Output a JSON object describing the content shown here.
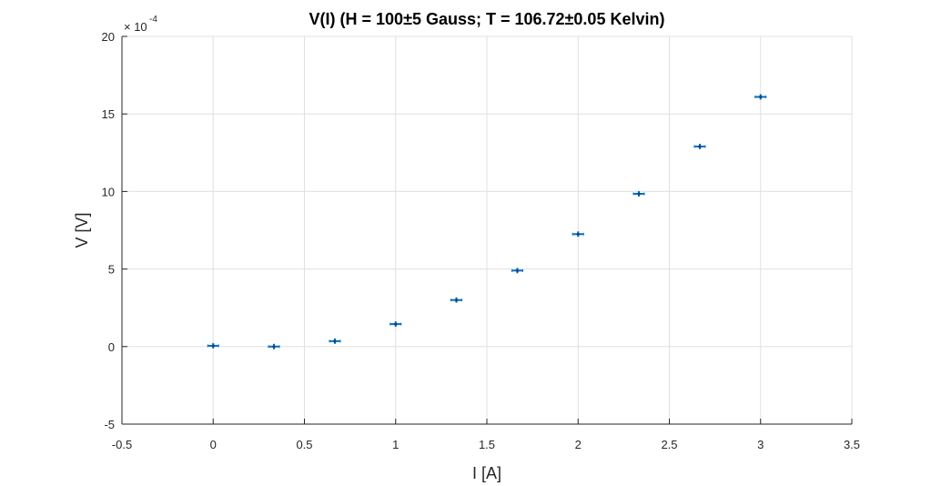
{
  "chart_data": {
    "type": "scatter",
    "title": "V(I) (H = 100±5 Gauss; T = 106.72±0.05 Kelvin)",
    "xlabel": "I [A]",
    "ylabel": "V [V]",
    "y_exponent_base": "× 10",
    "y_exponent_power": "-4",
    "xlim": [
      -0.5,
      3.5
    ],
    "ylim": [
      -5,
      20
    ],
    "x_ticks": [
      "-0.5",
      "0",
      "0.5",
      "1",
      "1.5",
      "2",
      "2.5",
      "3",
      "3.5"
    ],
    "y_ticks": [
      "-5",
      "0",
      "5",
      "10",
      "15",
      "20"
    ],
    "grid": true,
    "series": [
      {
        "x": [
          0,
          0.333,
          0.667,
          1.0,
          1.333,
          1.667,
          2.0,
          2.333,
          2.667,
          3.0
        ],
        "y": [
          0.05,
          0.0,
          0.35,
          1.45,
          3.0,
          4.9,
          7.25,
          9.85,
          12.9,
          16.1
        ],
        "x_err": [
          0.03,
          0.03,
          0.03,
          0.03,
          0.03,
          0.03,
          0.03,
          0.03,
          0.03,
          0.03
        ],
        "y_err": [
          0.12,
          0.12,
          0.12,
          0.12,
          0.12,
          0.12,
          0.12,
          0.12,
          0.12,
          0.12
        ]
      }
    ],
    "colors": {
      "marker": "#0072BD",
      "grid": "#e0e0e0",
      "axis": "#262626"
    }
  }
}
